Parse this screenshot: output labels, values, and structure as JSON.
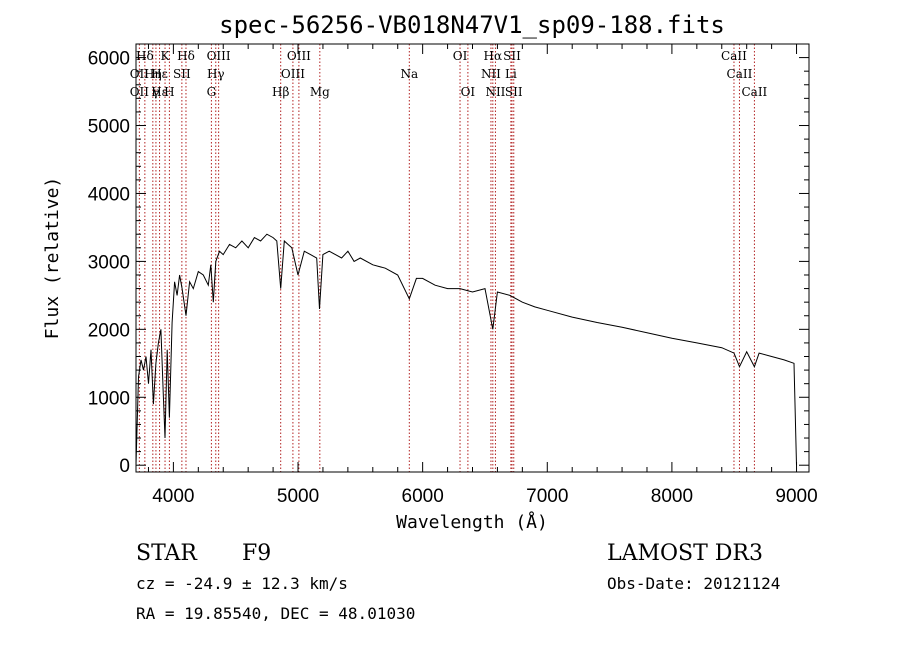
{
  "chart_data": {
    "type": "line",
    "title": "spec-56256-VB018N47V1_sp09-188.fits",
    "xlabel": "Wavelength (Å)",
    "ylabel": "Flux (relative)",
    "xlim": [
      3700,
      9100
    ],
    "ylim": [
      -100,
      6200
    ],
    "xticks": [
      4000,
      5000,
      6000,
      7000,
      8000,
      9000
    ],
    "yticks": [
      0,
      1000,
      2000,
      3000,
      4000,
      5000,
      6000
    ],
    "grid": false,
    "series": [
      {
        "name": "spectrum",
        "x": [
          3700,
          3720,
          3740,
          3760,
          3780,
          3800,
          3820,
          3840,
          3860,
          3880,
          3900,
          3920,
          3933,
          3950,
          3968,
          3990,
          4010,
          4030,
          4050,
          4070,
          4101,
          4130,
          4160,
          4200,
          4240,
          4280,
          4300,
          4320,
          4340,
          4370,
          4400,
          4450,
          4500,
          4550,
          4600,
          4650,
          4700,
          4750,
          4800,
          4830,
          4861,
          4890,
          4920,
          4950,
          5000,
          5050,
          5100,
          5150,
          5172,
          5200,
          5250,
          5300,
          5350,
          5400,
          5450,
          5500,
          5600,
          5700,
          5800,
          5893,
          5950,
          6000,
          6100,
          6200,
          6300,
          6400,
          6500,
          6563,
          6600,
          6700,
          6800,
          6900,
          7000,
          7200,
          7400,
          7600,
          7800,
          8000,
          8200,
          8400,
          8498,
          8542,
          8600,
          8662,
          8700,
          8800,
          8900,
          8980,
          9000
        ],
        "y": [
          0,
          1300,
          1550,
          1400,
          1600,
          1200,
          1700,
          900,
          1500,
          1800,
          2000,
          1000,
          400,
          1700,
          700,
          2100,
          2700,
          2500,
          2800,
          2600,
          2200,
          2700,
          2600,
          2850,
          2800,
          2650,
          2950,
          2400,
          3000,
          3150,
          3100,
          3250,
          3200,
          3300,
          3200,
          3350,
          3300,
          3400,
          3350,
          3300,
          2600,
          3300,
          3250,
          3200,
          2800,
          3150,
          3100,
          3050,
          2300,
          3100,
          3150,
          3100,
          3050,
          3150,
          3000,
          3050,
          2950,
          2900,
          2800,
          2450,
          2750,
          2750,
          2650,
          2600,
          2600,
          2550,
          2600,
          2000,
          2550,
          2500,
          2400,
          2330,
          2280,
          2180,
          2100,
          2030,
          1950,
          1870,
          1800,
          1730,
          1650,
          1450,
          1670,
          1450,
          1650,
          1600,
          1550,
          1500,
          0
        ]
      }
    ],
    "spectral_lines": [
      {
        "name": "Hδ",
        "x": 3771,
        "row": 0
      },
      {
        "name": "OII",
        "x": 3727,
        "row": 1
      },
      {
        "name": "OII",
        "x": 3727,
        "row": 2
      },
      {
        "name": "Hη",
        "x": 3835,
        "row": 1
      },
      {
        "name": "Hε",
        "x": 3889,
        "row": 2
      },
      {
        "name": "Hε",
        "x": 3889,
        "row": 1
      },
      {
        "name": "γ",
        "x": 3860,
        "row": 2
      },
      {
        "name": "K",
        "x": 3933,
        "row": 0
      },
      {
        "name": "H",
        "x": 3968,
        "row": 2
      },
      {
        "name": "SII",
        "x": 4068,
        "row": 1
      },
      {
        "name": "Hδ",
        "x": 4101,
        "row": 0
      },
      {
        "name": "OIII",
        "x": 4363,
        "row": 0
      },
      {
        "name": "Hγ",
        "x": 4340,
        "row": 1
      },
      {
        "name": "G",
        "x": 4305,
        "row": 2
      },
      {
        "name": "Hβ",
        "x": 4861,
        "row": 2
      },
      {
        "name": "OIII",
        "x": 4959,
        "row": 1
      },
      {
        "name": "OIII",
        "x": 5007,
        "row": 0
      },
      {
        "name": "Mg",
        "x": 5175,
        "row": 2
      },
      {
        "name": "Na",
        "x": 5893,
        "row": 1
      },
      {
        "name": "OI",
        "x": 6300,
        "row": 0
      },
      {
        "name": "OI",
        "x": 6363,
        "row": 2
      },
      {
        "name": "Hα",
        "x": 6563,
        "row": 0
      },
      {
        "name": "NII",
        "x": 6548,
        "row": 1
      },
      {
        "name": "NII",
        "x": 6584,
        "row": 2
      },
      {
        "name": "SII",
        "x": 6717,
        "row": 0
      },
      {
        "name": "Li",
        "x": 6708,
        "row": 1
      },
      {
        "name": "SII",
        "x": 6731,
        "row": 2
      },
      {
        "name": "CaII",
        "x": 8498,
        "row": 0
      },
      {
        "name": "CaII",
        "x": 8542,
        "row": 1
      },
      {
        "name": "CaII",
        "x": 8662,
        "row": 2
      }
    ]
  },
  "info": {
    "object_class": "STAR",
    "subclass": "F9",
    "survey": "LAMOST DR3",
    "redshift": "cz = -24.9 ± 12.3 km/s",
    "obs_date": "Obs-Date: 20121124",
    "coords": "RA =  19.85540, DEC =  48.01030"
  },
  "colors": {
    "spectrum": "#000000",
    "line_marker": "#b22222",
    "axes": "#000000"
  }
}
